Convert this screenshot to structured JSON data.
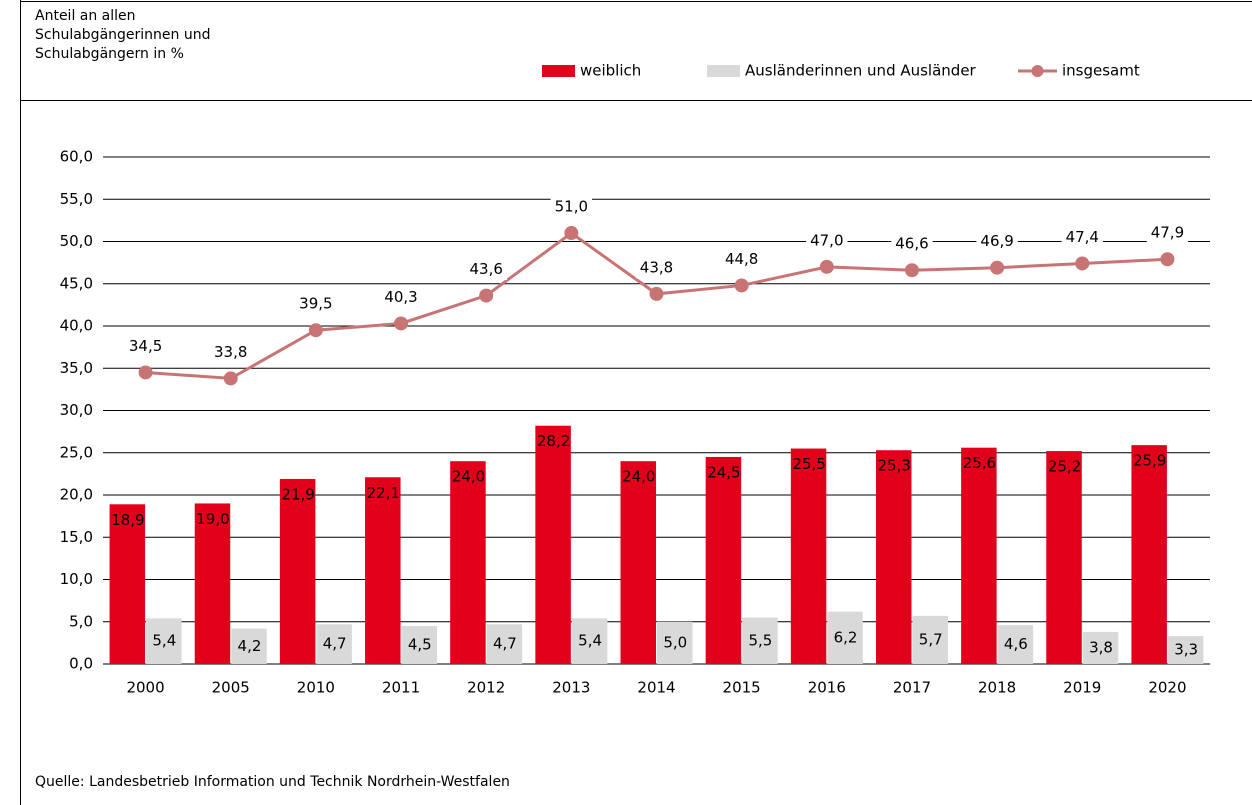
{
  "chart_data": {
    "type": "bar",
    "y_label": [
      "Anteil an allen",
      "Schulabgängerinnen und",
      "Schulabgängern in %"
    ],
    "source": "Quelle: Landesbetrieb Information und Technik Nordrhein-Westfalen",
    "categories": [
      "2000",
      "2005",
      "2010",
      "2011",
      "2012",
      "2013",
      "2014",
      "2015",
      "2016",
      "2017",
      "2018",
      "2019",
      "2020"
    ],
    "series": [
      {
        "name": "weiblich",
        "type": "bar",
        "color": "#e3001b",
        "values": [
          18.9,
          19.0,
          21.9,
          22.1,
          24.0,
          28.2,
          24.0,
          24.5,
          25.5,
          25.3,
          25.6,
          25.2,
          25.9
        ],
        "value_labels": [
          "18,9",
          "19,0",
          "21,9",
          "22,1",
          "24,0",
          "28,2",
          "24,0",
          "24,5",
          "25,5",
          "25,3",
          "25,6",
          "25,2",
          "25,9"
        ]
      },
      {
        "name": "Ausländerinnen und Ausländer",
        "type": "bar",
        "color": "#d9d9d9",
        "values": [
          5.4,
          4.2,
          4.7,
          4.5,
          4.7,
          5.4,
          5.0,
          5.5,
          6.2,
          5.7,
          4.6,
          3.8,
          3.3
        ],
        "value_labels": [
          "5,4",
          "4,2",
          "4,7",
          "4,5",
          "4,7",
          "5,4",
          "5,0",
          "5,5",
          "6,2",
          "5,7",
          "4,6",
          "3,8",
          "3,3"
        ]
      },
      {
        "name": "insgesamt",
        "type": "line",
        "color": "#c87474",
        "values": [
          34.5,
          33.8,
          39.5,
          40.3,
          43.6,
          51.0,
          43.8,
          44.8,
          47.0,
          46.6,
          46.9,
          47.4,
          47.9
        ],
        "value_labels": [
          "34,5",
          "33,8",
          "39,5",
          "40,3",
          "43,6",
          "51,0",
          "43,8",
          "44,8",
          "47,0",
          "46,6",
          "46,9",
          "47,4",
          "47,9"
        ]
      }
    ],
    "ylim": [
      0,
      60
    ],
    "yticks": [
      {
        "value": 0,
        "label": "0,0"
      },
      {
        "value": 5,
        "label": "5,0"
      },
      {
        "value": 10,
        "label": "10,0"
      },
      {
        "value": 15,
        "label": "15,0"
      },
      {
        "value": 20,
        "label": "20,0"
      },
      {
        "value": 25,
        "label": "25,0"
      },
      {
        "value": 30,
        "label": "30,0"
      },
      {
        "value": 35,
        "label": "35,0"
      },
      {
        "value": 40,
        "label": "40,0"
      },
      {
        "value": 45,
        "label": "45,0"
      },
      {
        "value": 50,
        "label": "50,0"
      },
      {
        "value": 55,
        "label": "55,0"
      },
      {
        "value": 60,
        "label": "60,0"
      }
    ],
    "grid": true
  }
}
